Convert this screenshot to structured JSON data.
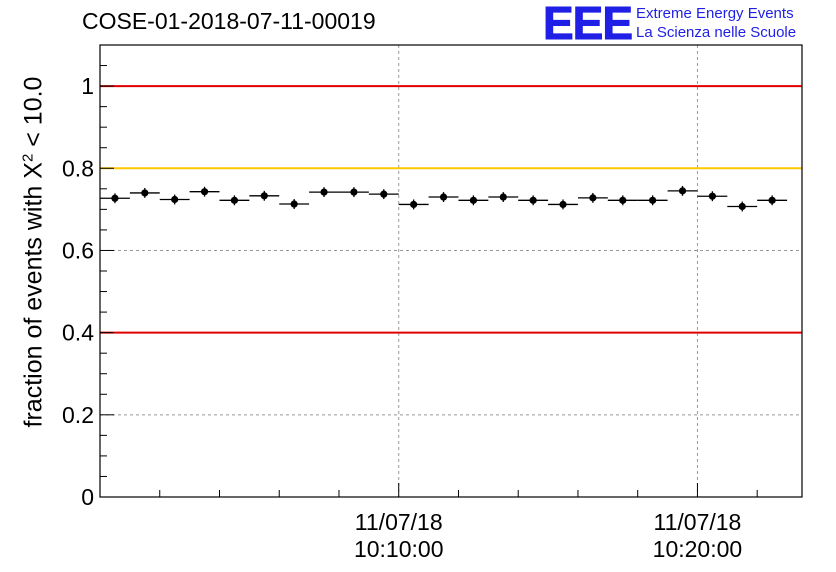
{
  "header": {
    "title": "COSE-01-2018-07-11-00019",
    "logo_mark": "EEE",
    "logo_line1": "Extreme Energy Events",
    "logo_line2": "La Scienza nelle Scuole"
  },
  "chart_data": {
    "type": "scatter",
    "title": "COSE-01-2018-07-11-00019",
    "ylabel_prefix": "fraction of events with ",
    "ylabel_symbol": "X",
    "ylabel_sup": "2",
    "ylabel_suffix": " < 10.0",
    "xlabel": "",
    "ylim": [
      0,
      1.1
    ],
    "yticks": [
      0,
      0.2,
      0.4,
      0.6,
      0.8,
      1
    ],
    "ytick_labels": [
      "0",
      "0.2",
      "0.4",
      "0.6",
      "0.8",
      "1"
    ],
    "xlim_minutes": [
      0,
      23.5
    ],
    "xtick_labels": [
      {
        "minute": 10,
        "date": "11/07/18",
        "time": "10:10:00"
      },
      {
        "minute": 20,
        "date": "11/07/18",
        "time": "10:20:00"
      }
    ],
    "reference_lines": [
      {
        "y": 1.0,
        "color": "#e00000"
      },
      {
        "y": 0.8,
        "color": "#ffc800"
      },
      {
        "y": 0.4,
        "color": "#e00000"
      }
    ],
    "grid": true,
    "bin_width_minutes": 1,
    "points": [
      {
        "x": 0.5,
        "y": 0.727
      },
      {
        "x": 1.5,
        "y": 0.74
      },
      {
        "x": 2.5,
        "y": 0.724
      },
      {
        "x": 3.5,
        "y": 0.743
      },
      {
        "x": 4.5,
        "y": 0.722
      },
      {
        "x": 5.5,
        "y": 0.733
      },
      {
        "x": 6.5,
        "y": 0.713
      },
      {
        "x": 7.5,
        "y": 0.742
      },
      {
        "x": 8.5,
        "y": 0.742
      },
      {
        "x": 9.5,
        "y": 0.737
      },
      {
        "x": 10.5,
        "y": 0.712
      },
      {
        "x": 11.5,
        "y": 0.73
      },
      {
        "x": 12.5,
        "y": 0.722
      },
      {
        "x": 13.5,
        "y": 0.73
      },
      {
        "x": 14.5,
        "y": 0.722
      },
      {
        "x": 15.5,
        "y": 0.712
      },
      {
        "x": 16.5,
        "y": 0.728
      },
      {
        "x": 17.5,
        "y": 0.722
      },
      {
        "x": 18.5,
        "y": 0.722
      },
      {
        "x": 19.5,
        "y": 0.745
      },
      {
        "x": 20.5,
        "y": 0.732
      },
      {
        "x": 21.5,
        "y": 0.707
      },
      {
        "x": 22.5,
        "y": 0.722
      }
    ],
    "error": 0.012
  }
}
